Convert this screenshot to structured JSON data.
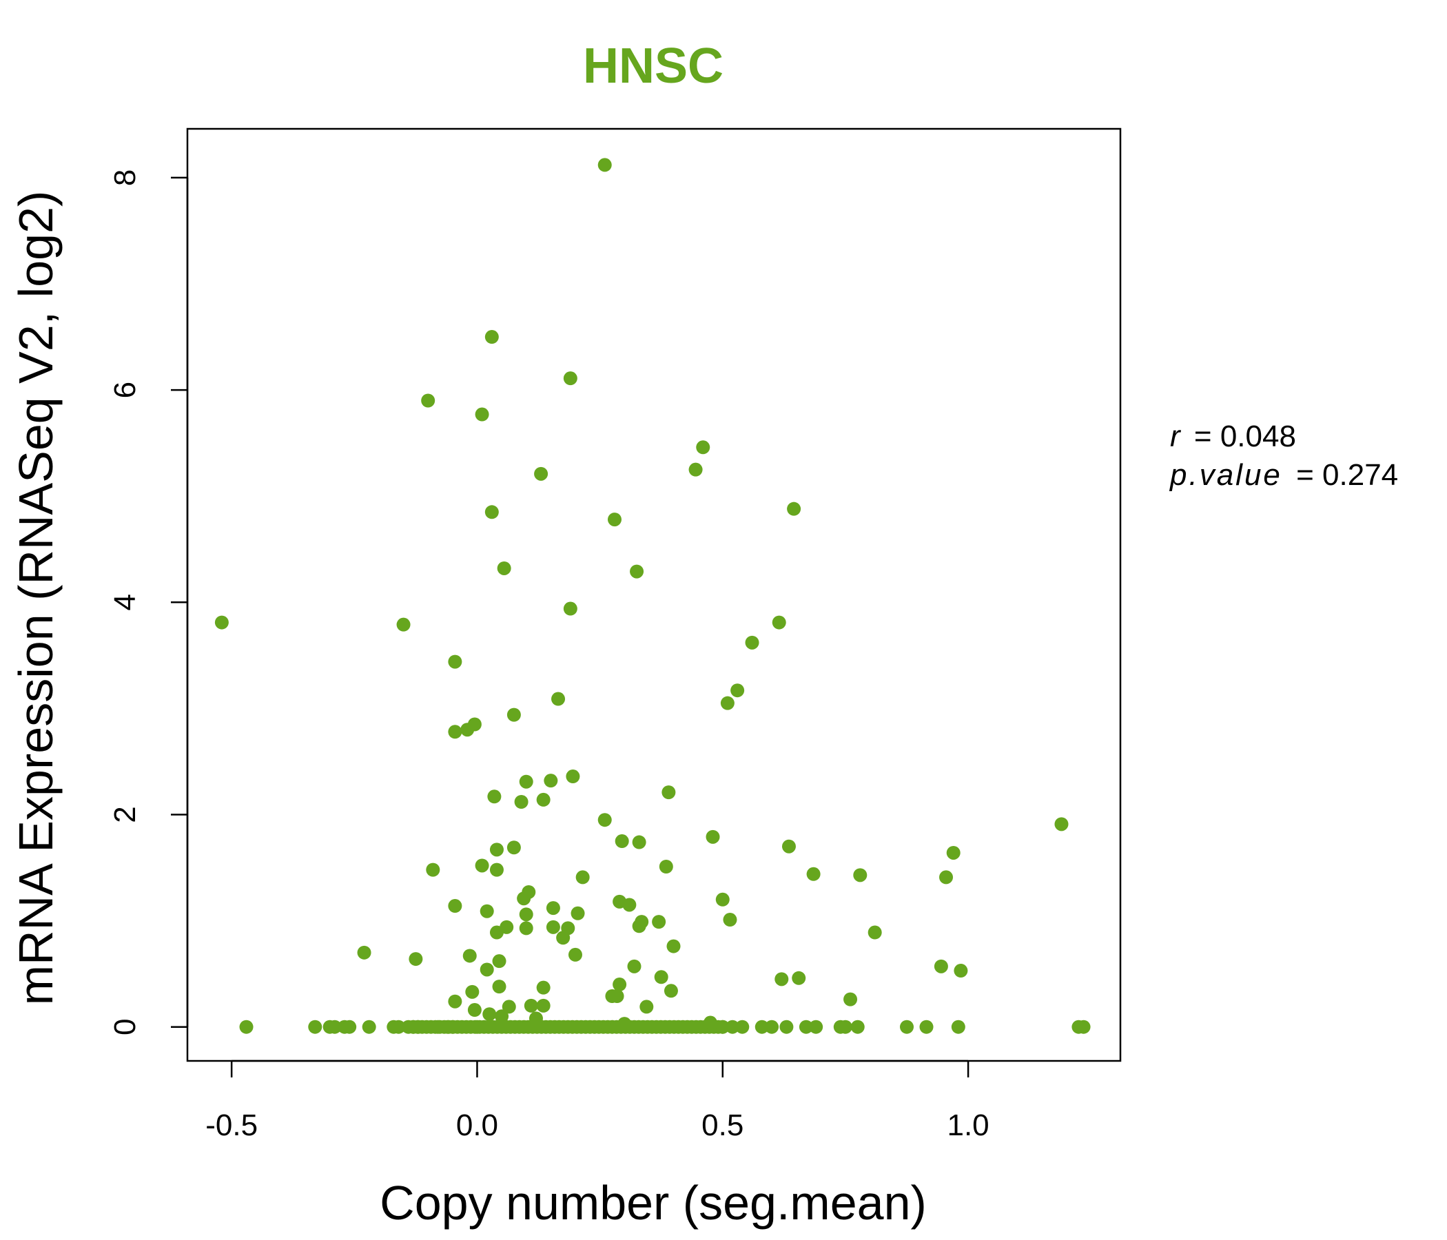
{
  "chart_data": {
    "type": "scatter",
    "title": "HNSC",
    "xlabel": "Copy number (seg.mean)",
    "ylabel": "mRNA Expression (RNASeq V2, log2)",
    "xlim": [
      -0.59,
      1.31
    ],
    "ylim": [
      -0.32,
      8.46
    ],
    "xticks": [
      -0.5,
      0.0,
      0.5,
      1.0
    ],
    "xtick_labels": [
      "-0.5",
      "0.0",
      "0.5",
      "1.0"
    ],
    "yticks": [
      0,
      2,
      4,
      6,
      8
    ],
    "ytick_labels": [
      "0",
      "2",
      "4",
      "6",
      "8"
    ],
    "grid": false,
    "legend": "none",
    "annotation": {
      "r_label": "r",
      "r_value": "0.048",
      "p_label": "p.value",
      "p_value": "0.274"
    },
    "colors": {
      "point": "#66A61E",
      "title": "#66A61E",
      "axis": "#000000"
    },
    "points": [
      {
        "x": -0.52,
        "y": 3.81
      },
      {
        "x": -0.47,
        "y": 0.0
      },
      {
        "x": -0.33,
        "y": 0.0
      },
      {
        "x": -0.3,
        "y": 0.0
      },
      {
        "x": -0.29,
        "y": 0.0
      },
      {
        "x": -0.27,
        "y": 0.0
      },
      {
        "x": -0.26,
        "y": 0.0
      },
      {
        "x": -0.23,
        "y": 0.7
      },
      {
        "x": -0.22,
        "y": 0.0
      },
      {
        "x": -0.17,
        "y": 0.0
      },
      {
        "x": -0.16,
        "y": 0.0
      },
      {
        "x": -0.15,
        "y": 3.79
      },
      {
        "x": -0.14,
        "y": 0.0
      },
      {
        "x": -0.13,
        "y": 0.0
      },
      {
        "x": -0.125,
        "y": 0.64
      },
      {
        "x": -0.12,
        "y": 0.0
      },
      {
        "x": -0.1,
        "y": 5.9
      },
      {
        "x": -0.09,
        "y": 1.48
      },
      {
        "x": -0.08,
        "y": 0.0
      },
      {
        "x": -0.06,
        "y": 0.0
      },
      {
        "x": -0.05,
        "y": 0.0
      },
      {
        "x": -0.045,
        "y": 0.24
      },
      {
        "x": -0.045,
        "y": 1.14
      },
      {
        "x": -0.045,
        "y": 3.44
      },
      {
        "x": -0.045,
        "y": 2.78
      },
      {
        "x": -0.02,
        "y": 2.8
      },
      {
        "x": -0.015,
        "y": 0.67
      },
      {
        "x": -0.01,
        "y": 0.33
      },
      {
        "x": -0.005,
        "y": 2.85
      },
      {
        "x": -0.005,
        "y": 0.16
      },
      {
        "x": 0.0,
        "y": 0.0
      },
      {
        "x": 0.01,
        "y": 5.77
      },
      {
        "x": 0.01,
        "y": 1.52
      },
      {
        "x": 0.02,
        "y": 1.09
      },
      {
        "x": 0.02,
        "y": 0.54
      },
      {
        "x": 0.025,
        "y": 0.12
      },
      {
        "x": 0.03,
        "y": 6.5
      },
      {
        "x": 0.03,
        "y": 4.85
      },
      {
        "x": 0.035,
        "y": 2.17
      },
      {
        "x": 0.04,
        "y": 1.67
      },
      {
        "x": 0.04,
        "y": 1.48
      },
      {
        "x": 0.04,
        "y": 0.89
      },
      {
        "x": 0.045,
        "y": 0.62
      },
      {
        "x": 0.045,
        "y": 0.38
      },
      {
        "x": 0.05,
        "y": 0.1
      },
      {
        "x": 0.055,
        "y": 4.32
      },
      {
        "x": 0.06,
        "y": 0.94
      },
      {
        "x": 0.065,
        "y": 0.19
      },
      {
        "x": 0.075,
        "y": 2.94
      },
      {
        "x": 0.075,
        "y": 1.69
      },
      {
        "x": 0.09,
        "y": 2.12
      },
      {
        "x": 0.095,
        "y": 1.21
      },
      {
        "x": 0.1,
        "y": 1.06
      },
      {
        "x": 0.1,
        "y": 0.93
      },
      {
        "x": 0.1,
        "y": 2.31
      },
      {
        "x": 0.105,
        "y": 1.27
      },
      {
        "x": 0.11,
        "y": 0.2
      },
      {
        "x": 0.12,
        "y": 0.08
      },
      {
        "x": 0.13,
        "y": 5.21
      },
      {
        "x": 0.135,
        "y": 2.14
      },
      {
        "x": 0.135,
        "y": 0.37
      },
      {
        "x": 0.135,
        "y": 0.2
      },
      {
        "x": 0.15,
        "y": 2.32
      },
      {
        "x": 0.155,
        "y": 1.12
      },
      {
        "x": 0.155,
        "y": 0.94
      },
      {
        "x": 0.165,
        "y": 3.09
      },
      {
        "x": 0.175,
        "y": 0.84
      },
      {
        "x": 0.185,
        "y": 0.93
      },
      {
        "x": 0.19,
        "y": 6.11
      },
      {
        "x": 0.19,
        "y": 3.94
      },
      {
        "x": 0.195,
        "y": 2.36
      },
      {
        "x": 0.2,
        "y": 0.68
      },
      {
        "x": 0.205,
        "y": 1.07
      },
      {
        "x": 0.215,
        "y": 1.41
      },
      {
        "x": 0.26,
        "y": 8.12
      },
      {
        "x": 0.26,
        "y": 1.95
      },
      {
        "x": 0.275,
        "y": 0.29
      },
      {
        "x": 0.28,
        "y": 4.78
      },
      {
        "x": 0.285,
        "y": 0.29
      },
      {
        "x": 0.29,
        "y": 1.18
      },
      {
        "x": 0.29,
        "y": 0.4
      },
      {
        "x": 0.295,
        "y": 1.75
      },
      {
        "x": 0.3,
        "y": 0.03
      },
      {
        "x": 0.31,
        "y": 1.15
      },
      {
        "x": 0.32,
        "y": 0.57
      },
      {
        "x": 0.325,
        "y": 4.29
      },
      {
        "x": 0.33,
        "y": 1.74
      },
      {
        "x": 0.33,
        "y": 0.95
      },
      {
        "x": 0.335,
        "y": 0.99
      },
      {
        "x": 0.345,
        "y": 0.19
      },
      {
        "x": 0.37,
        "y": 0.99
      },
      {
        "x": 0.375,
        "y": 0.47
      },
      {
        "x": 0.385,
        "y": 1.51
      },
      {
        "x": 0.39,
        "y": 2.21
      },
      {
        "x": 0.395,
        "y": 0.34
      },
      {
        "x": 0.4,
        "y": 0.76
      },
      {
        "x": 0.445,
        "y": 5.25
      },
      {
        "x": 0.46,
        "y": 5.46
      },
      {
        "x": 0.475,
        "y": 0.04
      },
      {
        "x": 0.48,
        "y": 1.79
      },
      {
        "x": 0.5,
        "y": 1.2
      },
      {
        "x": 0.51,
        "y": 3.05
      },
      {
        "x": 0.515,
        "y": 1.01
      },
      {
        "x": 0.53,
        "y": 3.17
      },
      {
        "x": 0.56,
        "y": 3.62
      },
      {
        "x": 0.615,
        "y": 3.81
      },
      {
        "x": 0.62,
        "y": 0.45
      },
      {
        "x": 0.635,
        "y": 1.7
      },
      {
        "x": 0.645,
        "y": 4.88
      },
      {
        "x": 0.655,
        "y": 0.46
      },
      {
        "x": 0.685,
        "y": 1.44
      },
      {
        "x": 0.76,
        "y": 0.26
      },
      {
        "x": 0.78,
        "y": 1.43
      },
      {
        "x": 0.81,
        "y": 0.89
      },
      {
        "x": 0.945,
        "y": 0.57
      },
      {
        "x": 0.955,
        "y": 1.41
      },
      {
        "x": 0.97,
        "y": 1.64
      },
      {
        "x": 0.985,
        "y": 0.53
      },
      {
        "x": 1.19,
        "y": 1.91
      },
      {
        "x": 0.5,
        "y": 0.0
      },
      {
        "x": 0.52,
        "y": 0.0
      },
      {
        "x": 0.54,
        "y": 0.0
      },
      {
        "x": 0.58,
        "y": 0.0
      },
      {
        "x": 0.6,
        "y": 0.0
      },
      {
        "x": 0.63,
        "y": 0.0
      },
      {
        "x": 0.67,
        "y": 0.0
      },
      {
        "x": 0.69,
        "y": 0.0
      },
      {
        "x": 0.74,
        "y": 0.0
      },
      {
        "x": 0.75,
        "y": 0.0
      },
      {
        "x": 0.775,
        "y": 0.0
      },
      {
        "x": 0.875,
        "y": 0.0
      },
      {
        "x": 0.915,
        "y": 0.0
      },
      {
        "x": 0.98,
        "y": 0.0
      },
      {
        "x": 1.225,
        "y": 0.0
      },
      {
        "x": 1.235,
        "y": 0.0
      }
    ],
    "dense_zero_band": {
      "x_from": -0.13,
      "x_to": 0.5,
      "step": 0.009,
      "y": 0.0
    }
  }
}
